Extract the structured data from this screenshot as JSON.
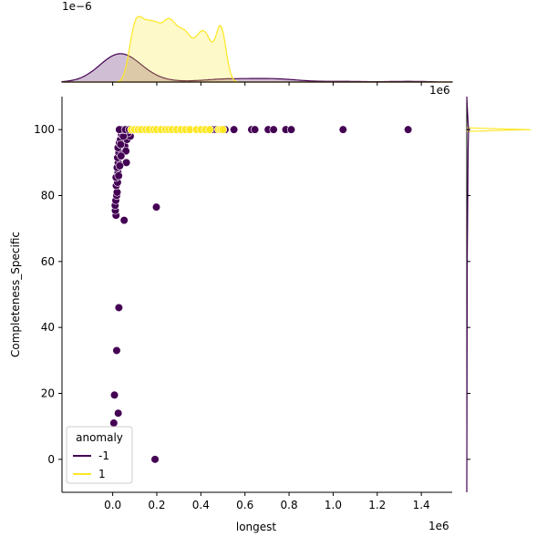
{
  "chart_data": {
    "type": "scatter",
    "xlabel": "longest",
    "ylabel": "Completeness_Specific",
    "xlim": [
      -230000,
      1540000
    ],
    "ylim": [
      -10,
      110
    ],
    "x_ticks": [
      0,
      200000,
      400000,
      600000,
      800000,
      1000000,
      1200000,
      1400000
    ],
    "x_tick_labels": [
      "0.0",
      "0.2",
      "0.4",
      "0.6",
      "0.8",
      "1.0",
      "1.2",
      "1.4"
    ],
    "y_ticks": [
      0,
      20,
      40,
      60,
      80,
      100
    ],
    "y_tick_labels": [
      "0",
      "20",
      "40",
      "60",
      "80",
      "100"
    ],
    "x_offset_label": "1e6",
    "top_offset_label": "1e6",
    "top_marginal_offset": "1e−6",
    "grid": false,
    "legend": {
      "title": "anomaly",
      "placement": "lower-left",
      "entries": [
        {
          "label": "-1",
          "color": "#440154"
        },
        {
          "label": "1",
          "color": "#fde725"
        }
      ]
    },
    "series": [
      {
        "name": "-1",
        "color": "#440154",
        "points": [
          [
            5000,
            11
          ],
          [
            8000,
            19.5
          ],
          [
            18000,
            33
          ],
          [
            25000,
            14
          ],
          [
            28000,
            46
          ],
          [
            192000,
            0
          ],
          [
            198000,
            76.5
          ],
          [
            52000,
            72.5
          ],
          [
            15000,
            74
          ],
          [
            12000,
            75.5
          ],
          [
            11000,
            77
          ],
          [
            14000,
            78.5
          ],
          [
            18000,
            80
          ],
          [
            20000,
            81
          ],
          [
            16000,
            83
          ],
          [
            22000,
            84
          ],
          [
            15000,
            85.5
          ],
          [
            24000,
            87
          ],
          [
            20000,
            88.5
          ],
          [
            25000,
            90
          ],
          [
            22000,
            91.5
          ],
          [
            28000,
            93
          ],
          [
            24000,
            94.5
          ],
          [
            30000,
            96
          ],
          [
            35000,
            97
          ],
          [
            40000,
            98.5
          ],
          [
            45000,
            99.5
          ],
          [
            55000,
            95
          ],
          [
            60000,
            93.5
          ],
          [
            65000,
            97
          ],
          [
            38000,
            92
          ],
          [
            62000,
            90
          ],
          [
            80000,
            98
          ],
          [
            70000,
            99
          ],
          [
            32000,
            89
          ],
          [
            27000,
            86
          ],
          [
            36000,
            95.5
          ],
          [
            48000,
            98
          ],
          [
            52000,
            100
          ],
          [
            40000,
            100
          ],
          [
            30000,
            100
          ],
          [
            58000,
            100
          ],
          [
            75000,
            100
          ],
          [
            455000,
            100
          ],
          [
            470000,
            100
          ],
          [
            510000,
            100
          ],
          [
            550000,
            100
          ],
          [
            630000,
            100
          ],
          [
            645000,
            100
          ],
          [
            705000,
            100
          ],
          [
            730000,
            100
          ],
          [
            785000,
            100
          ],
          [
            810000,
            100
          ],
          [
            1045000,
            100
          ],
          [
            1340000,
            100
          ]
        ]
      },
      {
        "name": "1",
        "color": "#fde725",
        "points": [
          [
            85000,
            100
          ],
          [
            100000,
            100
          ],
          [
            115000,
            100
          ],
          [
            130000,
            100
          ],
          [
            150000,
            100
          ],
          [
            165000,
            100
          ],
          [
            185000,
            100
          ],
          [
            200000,
            100
          ],
          [
            220000,
            100
          ],
          [
            240000,
            100
          ],
          [
            255000,
            100
          ],
          [
            270000,
            100
          ],
          [
            290000,
            100
          ],
          [
            310000,
            100
          ],
          [
            330000,
            100
          ],
          [
            350000,
            100
          ],
          [
            380000,
            100
          ],
          [
            400000,
            100
          ],
          [
            420000,
            100
          ],
          [
            440000,
            100
          ],
          [
            480000,
            100
          ],
          [
            490000,
            100
          ],
          [
            500000,
            100
          ]
        ]
      }
    ]
  }
}
